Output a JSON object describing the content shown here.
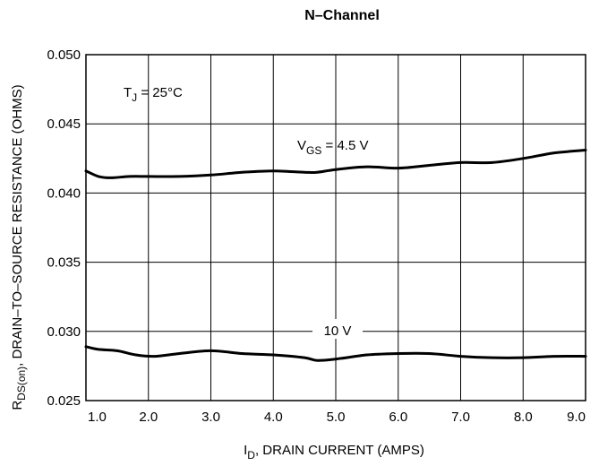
{
  "chart_data": {
    "type": "line",
    "title": "N–Channel",
    "xlabel": {
      "main": "I",
      "sub": "D",
      "rest": ", DRAIN CURRENT (AMPS)"
    },
    "ylabel": {
      "main": "R",
      "sub": "DS(on)",
      "rest": ", DRAIN–TO–SOURCE RESISTANCE (OHMS)"
    },
    "xlim": [
      1.0,
      9.0
    ],
    "ylim": [
      0.025,
      0.05
    ],
    "x_ticks": [
      "1.0",
      "2.0",
      "3.0",
      "4.0",
      "5.0",
      "6.0",
      "7.0",
      "8.0",
      "9.0"
    ],
    "x_tick_values": [
      1,
      2,
      3,
      4,
      5,
      6,
      7,
      8,
      9
    ],
    "y_ticks": [
      "0.025",
      "0.030",
      "0.035",
      "0.040",
      "0.045",
      "0.050"
    ],
    "y_tick_values": [
      0.025,
      0.03,
      0.035,
      0.04,
      0.045,
      0.05
    ],
    "grid": true,
    "annotation_temp": {
      "main": "T",
      "sub": "J",
      "rest": " = 25°C"
    },
    "series": [
      {
        "name": "V_GS = 4.5 V",
        "label": {
          "main": "V",
          "sub": "GS",
          "rest": " = 4.5 V"
        },
        "x": [
          1.0,
          1.2,
          1.4,
          1.7,
          2.0,
          2.5,
          3.0,
          3.5,
          4.0,
          4.5,
          4.7,
          5.0,
          5.5,
          6.0,
          6.5,
          7.0,
          7.5,
          8.0,
          8.5,
          9.0
        ],
        "y": [
          0.0416,
          0.0412,
          0.0411,
          0.0412,
          0.0412,
          0.0412,
          0.0413,
          0.0415,
          0.0416,
          0.0415,
          0.0415,
          0.0417,
          0.0419,
          0.0418,
          0.042,
          0.0422,
          0.0422,
          0.0425,
          0.0429,
          0.0431
        ]
      },
      {
        "name": "10 V",
        "label": {
          "main": "10 V"
        },
        "x": [
          1.0,
          1.2,
          1.5,
          1.8,
          2.1,
          2.5,
          3.0,
          3.5,
          4.0,
          4.5,
          4.7,
          5.0,
          5.5,
          6.0,
          6.5,
          7.0,
          7.5,
          8.0,
          8.5,
          9.0
        ],
        "y": [
          0.0289,
          0.0287,
          0.0286,
          0.0283,
          0.0282,
          0.0284,
          0.0286,
          0.0284,
          0.0283,
          0.0281,
          0.0279,
          0.028,
          0.0283,
          0.0284,
          0.0284,
          0.0282,
          0.0281,
          0.0281,
          0.0282,
          0.0282
        ]
      }
    ]
  }
}
